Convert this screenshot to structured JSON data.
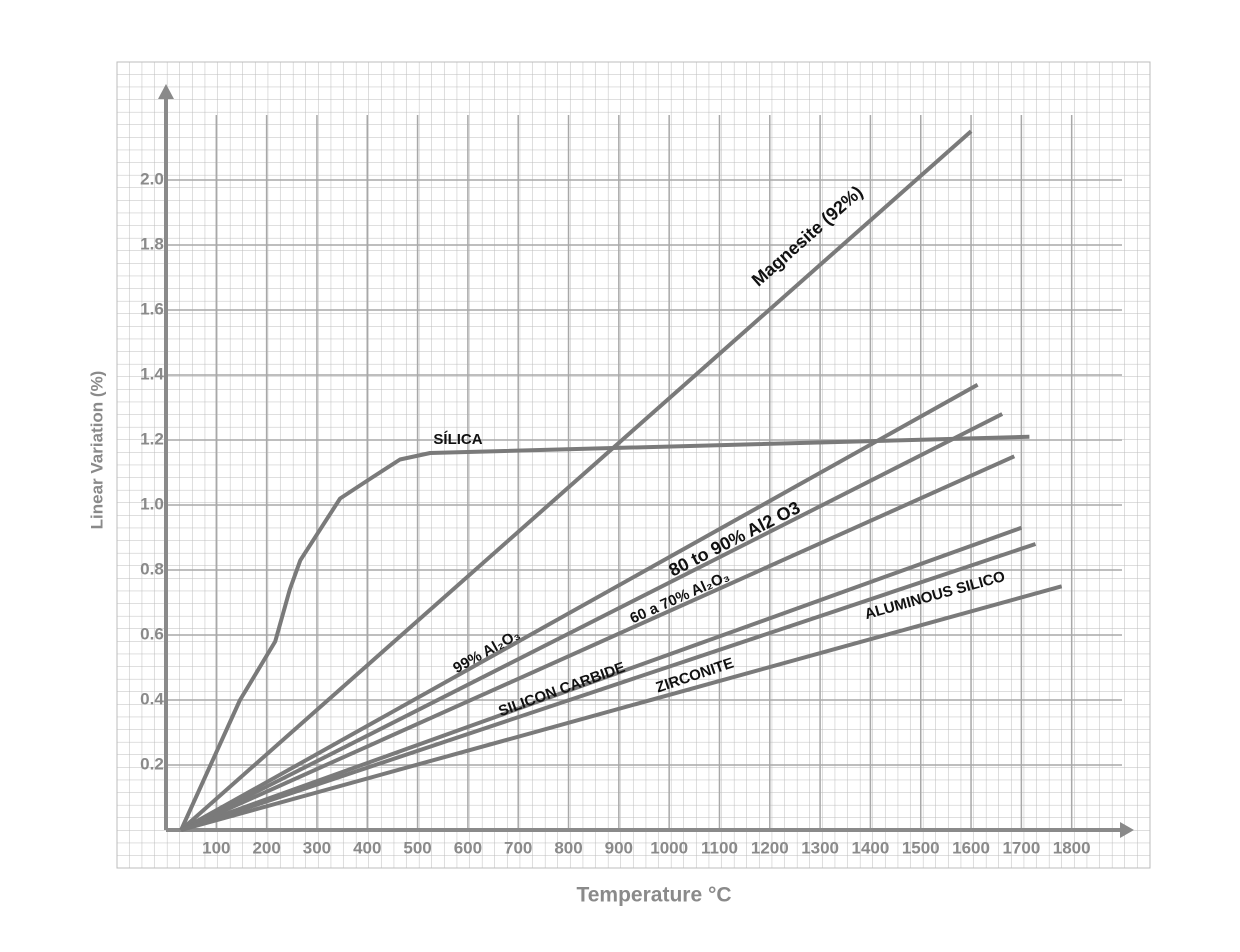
{
  "chart_data": {
    "type": "line",
    "x_label": "Temperature °C",
    "y_label": "Linear Variation (%)",
    "xlim": [
      0,
      1900
    ],
    "ylim": [
      0,
      2.2
    ],
    "xticks": [
      100,
      200,
      300,
      400,
      500,
      600,
      700,
      800,
      900,
      1000,
      1100,
      1200,
      1300,
      1400,
      1500,
      1600,
      1700,
      1800
    ],
    "yticks": [
      0.2,
      0.4,
      0.6,
      0.8,
      {
        "value": 1.0,
        "label": "1.0"
      },
      1.2,
      1.4,
      1.6,
      1.8,
      {
        "value": 2.0,
        "label": "2.0"
      }
    ],
    "grid": true,
    "series": [
      {
        "name": "Magnesite (92%)",
        "color": "#7a7a7a",
        "x": [
          30,
          1600
        ],
        "values": [
          0,
          2.15
        ]
      },
      {
        "name": "SÍLICA",
        "color": "#7a7a7a",
        "x": [
          30,
          147,
          217,
          246,
          267,
          346,
          405,
          465,
          525,
          1716
        ],
        "values": [
          0,
          0.4,
          0.58,
          0.74,
          0.83,
          1.02,
          1.08,
          1.14,
          1.16,
          1.21
        ]
      },
      {
        "name": "99% Al₂O₃",
        "color": "#7a7a7a",
        "x": [
          30,
          1613
        ],
        "values": [
          0,
          1.37
        ]
      },
      {
        "name": "80 to 90% Al2 O3",
        "color": "#7a7a7a",
        "x": [
          30,
          1662
        ],
        "values": [
          0,
          1.28
        ]
      },
      {
        "name": "60 a 70% Al₂O₃",
        "color": "#7a7a7a",
        "x": [
          30,
          1686
        ],
        "values": [
          0,
          1.15
        ]
      },
      {
        "name": "SILICON CARBIDE",
        "color": "#7a7a7a",
        "x": [
          30,
          1700
        ],
        "values": [
          0,
          0.93
        ]
      },
      {
        "name": "ZIRCONITE",
        "color": "#7a7a7a",
        "x": [
          30,
          1728
        ],
        "values": [
          0,
          0.88
        ]
      },
      {
        "name": "ALUMINOUS SILICO",
        "color": "#7a7a7a",
        "x": [
          30,
          1780
        ],
        "values": [
          0,
          0.75
        ]
      }
    ]
  }
}
